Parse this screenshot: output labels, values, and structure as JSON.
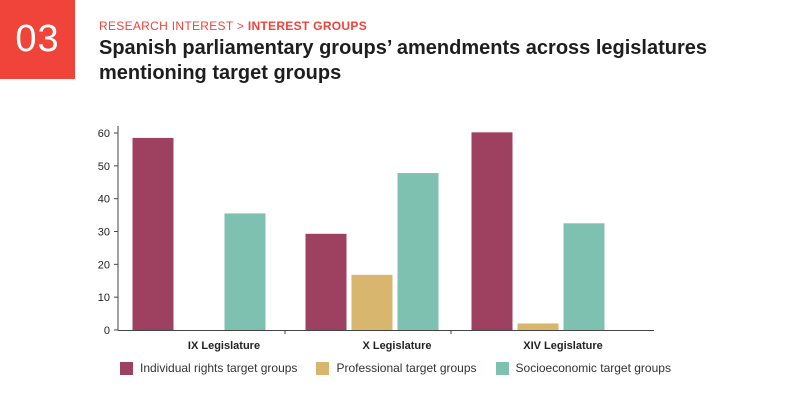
{
  "header": {
    "number": "03",
    "breadcrumb_part1": "RESEARCH INTEREST > ",
    "breadcrumb_part2": "INTEREST GROUPS",
    "title": "Spanish parliamentary groups’ amendments across legislatures mentioning target groups"
  },
  "colors": {
    "accent": "#f0433a",
    "series": [
      "#9e4060",
      "#d8b66d",
      "#7fc1b0"
    ]
  },
  "chart_data": {
    "type": "bar",
    "title": "Spanish parliamentary groups’ amendments across legislatures mentioning target groups",
    "categories": [
      "IX Legislature",
      "X Legislature",
      "XIV Legislature"
    ],
    "series": [
      {
        "name": "Individual rights target groups",
        "values": [
          58.5,
          29.3,
          60.2
        ]
      },
      {
        "name": "Professional target groups",
        "values": [
          0,
          16.8,
          2
        ]
      },
      {
        "name": "Socioeconomic target groups",
        "values": [
          35.5,
          47.8,
          32.5
        ]
      }
    ],
    "yticks": [
      "0",
      "10",
      "20",
      "30",
      "40",
      "50",
      "60"
    ],
    "ylim": [
      0,
      65
    ],
    "xlabel": "",
    "ylabel": "",
    "legend_position": "bottom"
  }
}
